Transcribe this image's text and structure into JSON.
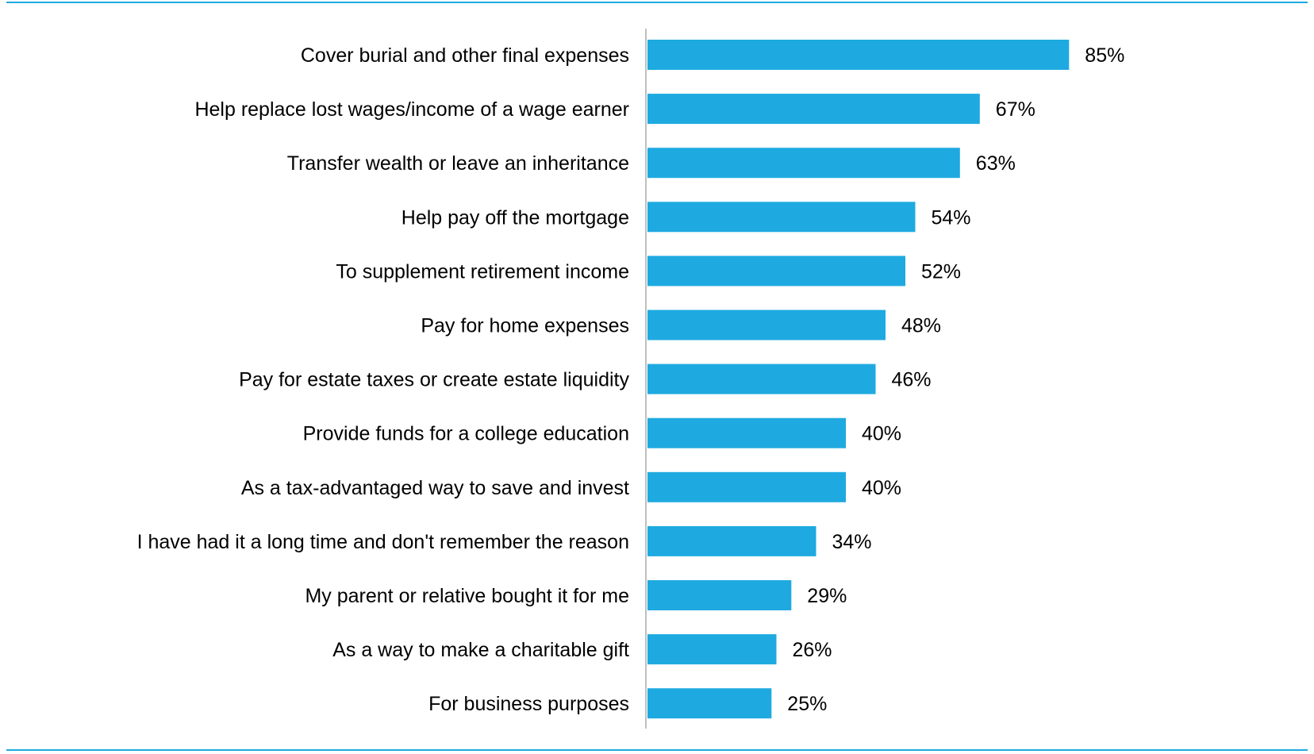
{
  "chart_data": {
    "type": "bar",
    "orientation": "horizontal",
    "categories": [
      "Cover burial and other final expenses",
      "Help replace lost wages/income of a wage earner",
      "Transfer wealth or leave an inheritance",
      "Help pay off the mortgage",
      "To supplement retirement income",
      "Pay for home expenses",
      "Pay for estate taxes or create estate liquidity",
      "Provide funds for a college education",
      "As a tax-advantaged way to save and invest",
      "I have had it a long time and don't remember the reason",
      "My parent or relative bought it for me",
      "As a way to make a charitable gift",
      "For business purposes"
    ],
    "values": [
      85,
      67,
      63,
      54,
      52,
      48,
      46,
      40,
      40,
      34,
      29,
      26,
      25
    ],
    "value_labels": [
      "85%",
      "67%",
      "63%",
      "54%",
      "52%",
      "48%",
      "46%",
      "40%",
      "40%",
      "34%",
      "29%",
      "26%",
      "25%"
    ],
    "unit": "%",
    "title": "",
    "xlabel": "",
    "ylabel": "",
    "xlim": [
      0,
      100
    ],
    "grid": false,
    "legend": "none",
    "bar_color": "#1EAAE0",
    "rule_color": "#1EAAE0",
    "axis_color": "#BFBFBF"
  }
}
